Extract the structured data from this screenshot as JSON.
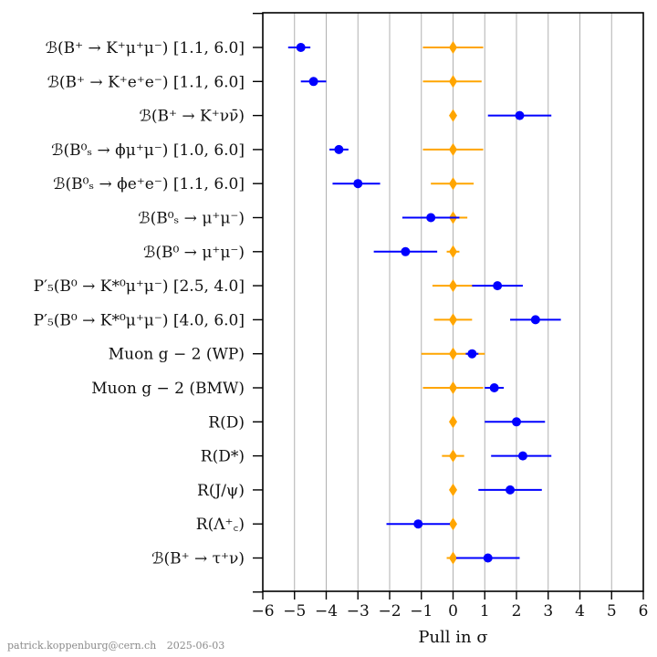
{
  "chart_data": {
    "type": "scatter",
    "title": "",
    "xlabel": "Pull in σ",
    "ylabel": "",
    "xlim": [
      -6,
      6
    ],
    "xticks": [
      "−6",
      "−5",
      "−4",
      "−3",
      "−2",
      "−1",
      "0",
      "1",
      "2",
      "3",
      "4",
      "5",
      "6"
    ],
    "grid": "vertical",
    "legend": "none",
    "categories": [
      "ℬ(B⁺ → K⁺μ⁺μ⁻) [1.1, 6.0]",
      "ℬ(B⁺ → K⁺e⁺e⁻) [1.1, 6.0]",
      "ℬ(B⁺ → K⁺νν̄)",
      "ℬ(B⁰ₛ → ϕμ⁺μ⁻) [1.0, 6.0]",
      "ℬ(B⁰ₛ → ϕe⁺e⁻) [1.1, 6.0]",
      "ℬ(B⁰ₛ → μ⁺μ⁻)",
      "ℬ(B⁰ → μ⁺μ⁻)",
      "P′₅(B⁰ → K*⁰μ⁺μ⁻) [2.5, 4.0]",
      "P′₅(B⁰ → K*⁰μ⁺μ⁻) [4.0, 6.0]",
      "Muon g − 2 (WP)",
      "Muon g − 2 (BMW)",
      "R(D)",
      "R(D*)",
      "R(J/ψ)",
      "R(Λ⁺꜀)",
      "ℬ(B⁺ → τ⁺ν)"
    ],
    "series": [
      {
        "color": "#0000ff",
        "marker": "circle",
        "values": [
          -4.8,
          -4.4,
          2.1,
          -3.6,
          -3.0,
          -0.7,
          -1.5,
          1.4,
          2.6,
          0.6,
          1.3,
          2.0,
          2.2,
          1.8,
          -1.1,
          1.1
        ],
        "xerr_low": [
          -5.2,
          -4.8,
          1.1,
          -3.9,
          -3.8,
          -1.6,
          -2.5,
          0.6,
          1.8,
          0.4,
          1.0,
          1.0,
          1.2,
          0.8,
          -2.1,
          0.1
        ],
        "xerr_high": [
          -4.5,
          -4.0,
          3.1,
          -3.3,
          -2.3,
          0.2,
          -0.5,
          2.2,
          3.4,
          0.8,
          1.6,
          2.9,
          3.1,
          2.8,
          -0.1,
          2.1
        ]
      },
      {
        "color": "#ffa500",
        "marker": "diamond",
        "values": [
          0,
          0,
          0,
          0,
          0,
          0,
          0,
          0,
          0,
          0,
          0,
          0,
          0,
          0,
          0,
          0
        ],
        "xerr_low": [
          -0.95,
          -0.95,
          0,
          -0.95,
          -0.7,
          -0.45,
          -0.2,
          -0.65,
          -0.6,
          -1.0,
          -0.95,
          0,
          -0.35,
          0,
          0,
          -0.2
        ],
        "xerr_high": [
          0.95,
          0.9,
          0,
          0.95,
          0.65,
          0.45,
          0.2,
          0.65,
          0.6,
          1.0,
          0.95,
          0,
          0.35,
          0,
          0,
          0.2
        ]
      }
    ]
  },
  "credit": {
    "author": "patrick.koppenburg@cern.ch",
    "date": "2025-06-03"
  }
}
